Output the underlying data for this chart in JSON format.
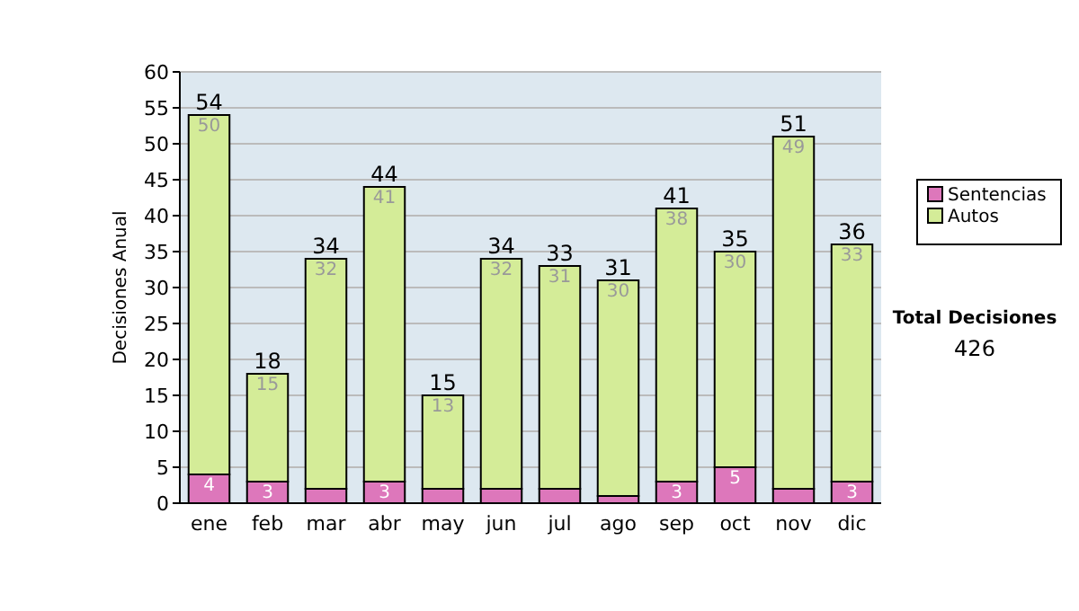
{
  "chart_data": {
    "type": "bar",
    "stacked": true,
    "ylabel": "Decisiones Anual",
    "categories": [
      "ene",
      "feb",
      "mar",
      "abr",
      "may",
      "jun",
      "jul",
      "ago",
      "sep",
      "oct",
      "nov",
      "dic"
    ],
    "series": [
      {
        "name": "Sentencias",
        "color": "#dd77bb",
        "values": [
          4,
          3,
          2,
          3,
          2,
          2,
          2,
          1,
          3,
          5,
          2,
          3
        ],
        "value_labels": [
          "4",
          "3",
          null,
          "3",
          null,
          null,
          null,
          null,
          "3",
          "5",
          null,
          "3"
        ]
      },
      {
        "name": "Autos",
        "color": "#d4ec98",
        "values": [
          50,
          15,
          32,
          41,
          13,
          32,
          31,
          30,
          38,
          30,
          49,
          33
        ],
        "value_labels": [
          "50",
          "15",
          "32",
          "41",
          "13",
          "32",
          "31",
          "30",
          "38",
          "30",
          "49",
          "33"
        ]
      }
    ],
    "totals": [
      "54",
      "18",
      "34",
      "44",
      "15",
      "34",
      "33",
      "31",
      "41",
      "35",
      "51",
      "36"
    ],
    "ylim": [
      0,
      60
    ],
    "yticks": [
      0,
      5,
      10,
      15,
      20,
      25,
      30,
      35,
      40,
      45,
      50,
      55,
      60
    ],
    "grid": "y",
    "legend": "right",
    "annotations": [
      "Total Decisiones",
      "426"
    ]
  }
}
